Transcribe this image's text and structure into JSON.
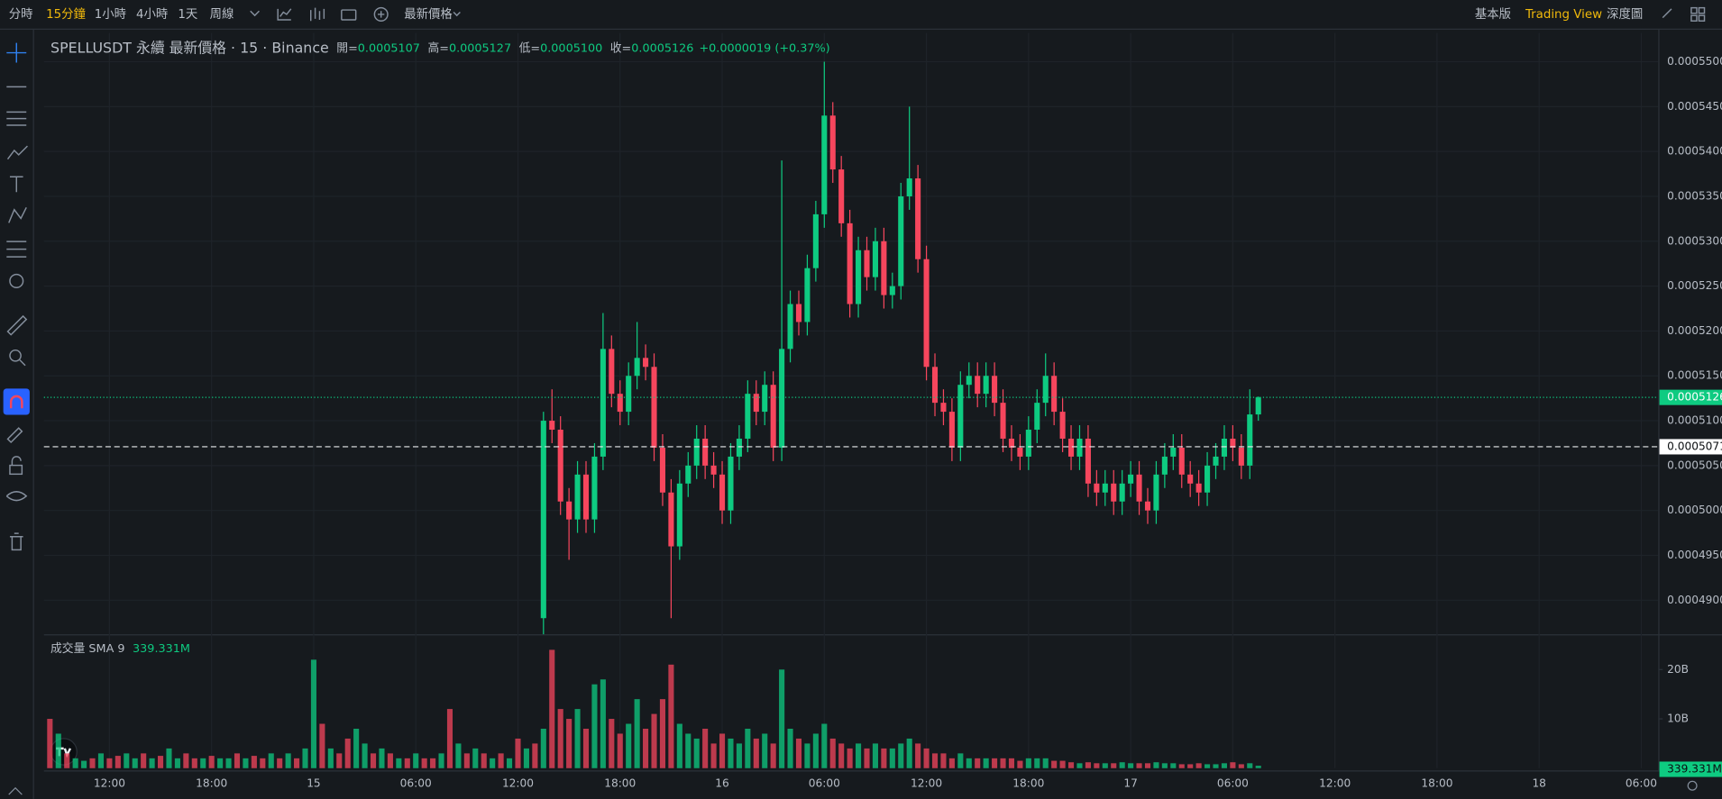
{
  "toolbar": {
    "intervals": [
      "分時",
      "15分鐘",
      "1小時",
      "4小時",
      "1天",
      "周線"
    ],
    "active_interval": 1,
    "price_type": "最新價格",
    "views": [
      "基本版",
      "Trading View",
      "深度圖"
    ],
    "active_view": 1
  },
  "chart_data": {
    "type": "candlestick",
    "title": "SPELLUSDT 永續 最新價格 · 15 · Binance",
    "ohlc_legend": [
      {
        "label": "開=",
        "value": "0.0005107"
      },
      {
        "label": "高=",
        "value": "0.0005127"
      },
      {
        "label": "低=",
        "value": "0.0005100"
      },
      {
        "label": "收=",
        "value": "0.0005126"
      },
      {
        "value": "+0.0000019 (+0.37%)"
      }
    ],
    "up_color": "#0ecb81",
    "down_color": "#f6465d",
    "x": [
      0,
      1,
      2,
      3,
      4,
      5,
      6,
      7,
      8,
      9,
      10,
      11,
      12,
      13,
      14,
      15,
      16,
      17,
      18,
      19,
      20,
      21,
      22,
      23,
      24,
      25,
      26,
      27,
      28,
      29,
      30,
      31,
      32,
      33,
      34,
      35,
      36,
      37,
      38,
      39,
      40,
      41,
      42,
      43,
      44,
      45,
      46,
      47,
      48,
      49,
      50,
      51,
      52,
      53,
      54,
      55,
      56,
      57,
      58,
      59,
      60,
      61,
      62,
      63,
      64,
      65,
      66,
      67,
      68,
      69,
      70,
      71,
      72,
      73,
      74,
      75,
      76,
      77,
      78,
      79,
      80,
      81,
      82,
      83,
      84
    ],
    "open": [
      0.000488,
      0.00051,
      0.000509,
      0.000501,
      0.000499,
      0.000504,
      0.000499,
      0.000506,
      0.000518,
      0.000513,
      0.000511,
      0.000515,
      0.000517,
      0.000516,
      0.000507,
      0.000502,
      0.000496,
      0.000503,
      0.000505,
      0.000508,
      0.000505,
      0.000504,
      0.0005,
      0.000506,
      0.000508,
      0.000513,
      0.000511,
      0.000514,
      0.000507,
      0.000518,
      0.000523,
      0.000521,
      0.000527,
      0.000533,
      0.000544,
      0.000538,
      0.000532,
      0.000523,
      0.000529,
      0.000526,
      0.00053,
      0.000524,
      0.000525,
      0.000535,
      0.000537,
      0.000528,
      0.000516,
      0.000512,
      0.000511,
      0.000507,
      0.000514,
      0.000515,
      0.000513,
      0.000515,
      0.000512,
      0.000508,
      0.000507,
      0.000506,
      0.000509,
      0.000512,
      0.000515,
      0.000511,
      0.000508,
      0.000506,
      0.000508,
      0.000503,
      0.000502,
      0.000503,
      0.000501,
      0.000503,
      0.000504,
      0.000501,
      0.0005,
      0.000504,
      0.000506,
      0.000507,
      0.000504,
      0.000503,
      0.000502,
      0.000505,
      0.000506,
      0.000508,
      0.000507,
      0.000505,
      0.0005107
    ],
    "high": [
      0.000511,
      0.0005135,
      0.0005105,
      0.0005025,
      0.0005055,
      0.0005055,
      0.0005075,
      0.000522,
      0.0005195,
      0.0005145,
      0.0005165,
      0.000521,
      0.0005185,
      0.0005175,
      0.0005085,
      0.0005035,
      0.0005045,
      0.0005065,
      0.0005095,
      0.0005095,
      0.0005065,
      0.0005055,
      0.0005075,
      0.0005095,
      0.0005145,
      0.0005145,
      0.0005155,
      0.0005155,
      0.000539,
      0.0005245,
      0.0005245,
      0.0005285,
      0.0005345,
      0.00055,
      0.0005455,
      0.0005395,
      0.0005335,
      0.0005305,
      0.0005305,
      0.0005315,
      0.0005315,
      0.0005265,
      0.0005365,
      0.000545,
      0.0005385,
      0.0005295,
      0.0005175,
      0.0005135,
      0.0005125,
      0.0005155,
      0.0005165,
      0.0005165,
      0.0005165,
      0.0005165,
      0.0005135,
      0.0005095,
      0.0005085,
      0.0005105,
      0.0005135,
      0.0005175,
      0.0005165,
      0.0005125,
      0.0005095,
      0.0005095,
      0.0005095,
      0.0005045,
      0.0005045,
      0.0005045,
      0.0005045,
      0.0005055,
      0.0005055,
      0.0005025,
      0.0005055,
      0.0005075,
      0.0005085,
      0.0005085,
      0.0005055,
      0.0005045,
      0.0005065,
      0.0005075,
      0.0005095,
      0.0005095,
      0.0005085,
      0.0005135,
      0.0005127
    ],
    "low": [
      0.0004862,
      0.0005075,
      0.0004995,
      0.0004945,
      0.0004975,
      0.0004975,
      0.0004975,
      0.0005045,
      0.0005115,
      0.0005095,
      0.0005095,
      0.0005135,
      0.0005145,
      0.0005055,
      0.0005005,
      0.000488,
      0.0004945,
      0.0005015,
      0.0005035,
      0.0005035,
      0.0005025,
      0.0004985,
      0.0004985,
      0.0005045,
      0.0005065,
      0.0005095,
      0.0005095,
      0.0005055,
      0.0005055,
      0.0005165,
      0.0005195,
      0.0005195,
      0.0005255,
      0.0005315,
      0.0005365,
      0.0005305,
      0.0005215,
      0.0005215,
      0.0005245,
      0.0005245,
      0.0005225,
      0.0005225,
      0.0005235,
      0.0005335,
      0.0005265,
      0.0005145,
      0.0005105,
      0.0005095,
      0.0005055,
      0.0005055,
      0.0005125,
      0.0005115,
      0.0005115,
      0.0005105,
      0.0005065,
      0.0005055,
      0.0005045,
      0.0005045,
      0.0005075,
      0.0005105,
      0.0005095,
      0.0005065,
      0.0005045,
      0.0005045,
      0.0005015,
      0.0005005,
      0.0005005,
      0.0004995,
      0.0004995,
      0.0005015,
      0.0004995,
      0.0004985,
      0.0004985,
      0.0005025,
      0.0005045,
      0.0005025,
      0.0005015,
      0.0005005,
      0.0005005,
      0.0005035,
      0.0005045,
      0.0005055,
      0.0005035,
      0.0005035,
      0.00051
    ],
    "close": [
      0.00051,
      0.000509,
      0.000501,
      0.000499,
      0.000504,
      0.000499,
      0.000506,
      0.000518,
      0.000513,
      0.000511,
      0.000515,
      0.000517,
      0.000516,
      0.000507,
      0.000502,
      0.000496,
      0.000503,
      0.000505,
      0.000508,
      0.000505,
      0.000504,
      0.0005,
      0.000506,
      0.000508,
      0.000513,
      0.000511,
      0.000514,
      0.000507,
      0.000518,
      0.000523,
      0.000521,
      0.000527,
      0.000533,
      0.000544,
      0.000538,
      0.000532,
      0.000523,
      0.000529,
      0.000526,
      0.00053,
      0.000524,
      0.000525,
      0.000535,
      0.000537,
      0.000528,
      0.000516,
      0.000512,
      0.000511,
      0.000507,
      0.000514,
      0.000515,
      0.000513,
      0.000515,
      0.000512,
      0.000508,
      0.000507,
      0.000506,
      0.000509,
      0.000512,
      0.000515,
      0.000511,
      0.000508,
      0.000506,
      0.000508,
      0.000503,
      0.000502,
      0.000503,
      0.000501,
      0.000503,
      0.000504,
      0.000501,
      0.0005,
      0.000504,
      0.000506,
      0.000507,
      0.000504,
      0.000503,
      0.000502,
      0.000505,
      0.000506,
      0.000508,
      0.000507,
      0.000505,
      0.0005107,
      0.0005126
    ],
    "xlim": [
      -58.7,
      131
    ],
    "xticks": [
      {
        "value": -51,
        "label": "12:00"
      },
      {
        "value": -39,
        "label": "18:00"
      },
      {
        "value": -27,
        "label": "15"
      },
      {
        "value": -15,
        "label": "06:00"
      },
      {
        "value": -3,
        "label": "12:00"
      },
      {
        "value": 9,
        "label": "18:00"
      },
      {
        "value": 21,
        "label": "16"
      },
      {
        "value": 33,
        "label": "06:00"
      },
      {
        "value": 45,
        "label": "12:00"
      },
      {
        "value": 57,
        "label": "18:00"
      },
      {
        "value": 69,
        "label": "17"
      },
      {
        "value": 81,
        "label": "06:00"
      },
      {
        "value": 93,
        "label": "12:00"
      },
      {
        "value": 105,
        "label": "18:00"
      },
      {
        "value": 117,
        "label": "18"
      },
      {
        "value": 129,
        "label": "06:00"
      }
    ],
    "ylim": [
      0.0004862,
      0.0005532
    ],
    "yticks": [
      {
        "value": 0.00049,
        "label": "0.0004900"
      },
      {
        "value": 0.000495,
        "label": "0.0004950"
      },
      {
        "value": 0.0005,
        "label": "0.0005000"
      },
      {
        "value": 0.000505,
        "label": "0.0005050"
      },
      {
        "value": 0.00051,
        "label": "0.0005100"
      },
      {
        "value": 0.000515,
        "label": "0.0005150"
      },
      {
        "value": 0.00052,
        "label": "0.0005200"
      },
      {
        "value": 0.000525,
        "label": "0.0005250"
      },
      {
        "value": 0.00053,
        "label": "0.0005300"
      },
      {
        "value": 0.000535,
        "label": "0.0005350"
      },
      {
        "value": 0.00054,
        "label": "0.0005400"
      },
      {
        "value": 0.000545,
        "label": "0.0005450"
      },
      {
        "value": 0.00055,
        "label": "0.0005500"
      }
    ],
    "grid": true,
    "last_price": 0.0005126,
    "mark_line": 0.0005071,
    "volume": {
      "title": "成交量 SMA 9",
      "sma_label": "339.331M",
      "x": [
        -58,
        -57,
        -56,
        -55,
        -54,
        -53,
        -52,
        -51,
        -50,
        -49,
        -48,
        -47,
        -46,
        -45,
        -44,
        -43,
        -42,
        -41,
        -40,
        -39,
        -38,
        -37,
        -36,
        -35,
        -34,
        -33,
        -32,
        -31,
        -30,
        -29,
        -28,
        -27,
        -26,
        -25,
        -24,
        -23,
        -22,
        -21,
        -20,
        -19,
        -18,
        -17,
        -16,
        -15,
        -14,
        -13,
        -12,
        -11,
        -10,
        -9,
        -8,
        -7,
        -6,
        -5,
        -4,
        -3,
        -2,
        -1,
        0,
        1,
        2,
        3,
        4,
        5,
        6,
        7,
        8,
        9,
        10,
        11,
        12,
        13,
        14,
        15,
        16,
        17,
        18,
        19,
        20,
        21,
        22,
        23,
        24,
        25,
        26,
        27,
        28,
        29,
        30,
        31,
        32,
        33,
        34,
        35,
        36,
        37,
        38,
        39,
        40,
        41,
        42,
        43,
        44,
        45,
        46,
        47,
        48,
        49,
        50,
        51,
        52,
        53,
        54,
        55,
        56,
        57,
        58,
        59,
        60,
        61,
        62,
        63,
        64,
        65,
        66,
        67,
        68,
        69,
        70,
        71,
        72,
        73,
        74,
        75,
        76,
        77,
        78,
        79,
        80,
        81,
        82,
        83,
        84
      ],
      "values": [
        10,
        7,
        3,
        2,
        1.5,
        2,
        3,
        2,
        2.5,
        3,
        2,
        3,
        2,
        2.5,
        4,
        2,
        3,
        2,
        2,
        2.5,
        2,
        2,
        3,
        2,
        2.5,
        2,
        3,
        2,
        3,
        2,
        4,
        22,
        9,
        4,
        3,
        6,
        8,
        5,
        3,
        4,
        3,
        2,
        2,
        3,
        2,
        2,
        3,
        12,
        5,
        3,
        4,
        3,
        2,
        3,
        2,
        6,
        4,
        5,
        8,
        24,
        12,
        10,
        12,
        8,
        17,
        18,
        10,
        7,
        9,
        14,
        8,
        11,
        14,
        21,
        9,
        7,
        6,
        8,
        5,
        7,
        6,
        5,
        8,
        6,
        7,
        5,
        20,
        8,
        6,
        5,
        7,
        9,
        6,
        5,
        4,
        5,
        4,
        5,
        4,
        4,
        5,
        6,
        5,
        4,
        3,
        3,
        2,
        3,
        2,
        2,
        2,
        2,
        2,
        2,
        1.5,
        2,
        2,
        2,
        1.5,
        1.5,
        1.2,
        1,
        1.2,
        1,
        1,
        1,
        1.2,
        1,
        1,
        1,
        1.2,
        1,
        1,
        0.8,
        0.8,
        1,
        0.8,
        0.8,
        1,
        1.2,
        0.8,
        1,
        0.5
      ],
      "colors": [
        "#f6465d",
        "#0ecb81",
        "#f6465d",
        "#0ecb81",
        "#0ecb81",
        "#f6465d",
        "#0ecb81",
        "#f6465d",
        "#f6465d",
        "#0ecb81",
        "#0ecb81",
        "#f6465d",
        "#0ecb81",
        "#f6465d",
        "#0ecb81",
        "#0ecb81",
        "#f6465d",
        "#f6465d",
        "#0ecb81",
        "#f6465d",
        "#0ecb81",
        "#0ecb81",
        "#f6465d",
        "#0ecb81",
        "#f6465d",
        "#f6465d",
        "#0ecb81",
        "#f6465d",
        "#0ecb81",
        "#f6465d",
        "#0ecb81",
        "#0ecb81",
        "#f6465d",
        "#0ecb81",
        "#f6465d",
        "#f6465d",
        "#0ecb81",
        "#0ecb81",
        "#f6465d",
        "#0ecb81",
        "#f6465d",
        "#0ecb81",
        "#f6465d",
        "#0ecb81",
        "#f6465d",
        "#f6465d",
        "#0ecb81",
        "#f6465d",
        "#0ecb81",
        "#f6465d",
        "#0ecb81",
        "#f6465d",
        "#0ecb81",
        "#f6465d",
        "#0ecb81",
        "#f6465d",
        "#0ecb81",
        "#f6465d",
        "#0ecb81",
        "#f6465d",
        "#f6465d",
        "#f6465d",
        "#0ecb81",
        "#f6465d",
        "#0ecb81",
        "#0ecb81",
        "#f6465d",
        "#f6465d",
        "#0ecb81",
        "#0ecb81",
        "#f6465d",
        "#f6465d",
        "#f6465d",
        "#f6465d",
        "#0ecb81",
        "#0ecb81",
        "#0ecb81",
        "#f6465d",
        "#f6465d",
        "#f6465d",
        "#0ecb81",
        "#0ecb81",
        "#0ecb81",
        "#f6465d",
        "#0ecb81",
        "#f6465d",
        "#0ecb81",
        "#0ecb81",
        "#f6465d",
        "#0ecb81",
        "#0ecb81",
        "#0ecb81",
        "#f6465d",
        "#f6465d",
        "#f6465d",
        "#0ecb81",
        "#f6465d",
        "#0ecb81",
        "#f6465d",
        "#0ecb81",
        "#0ecb81",
        "#0ecb81",
        "#f6465d",
        "#f6465d",
        "#f6465d",
        "#f6465d",
        "#f6465d",
        "#0ecb81",
        "#0ecb81",
        "#f6465d",
        "#0ecb81",
        "#f6465d",
        "#f6465d",
        "#f6465d",
        "#f6465d",
        "#0ecb81",
        "#0ecb81",
        "#0ecb81",
        "#f6465d",
        "#f6465d",
        "#f6465d",
        "#0ecb81",
        "#f6465d",
        "#f6465d",
        "#0ecb81",
        "#f6465d",
        "#0ecb81",
        "#0ecb81",
        "#f6465d",
        "#f6465d",
        "#0ecb81",
        "#0ecb81",
        "#0ecb81",
        "#f6465d",
        "#f6465d",
        "#f6465d",
        "#0ecb81",
        "#0ecb81",
        "#0ecb81",
        "#f6465d",
        "#f6465d",
        "#0ecb81",
        "#0ecb81"
      ],
      "ylim": [
        0,
        26.7
      ],
      "yticks": [
        {
          "value": 10,
          "label": "10B"
        },
        {
          "value": 20,
          "label": "20B"
        }
      ]
    }
  }
}
